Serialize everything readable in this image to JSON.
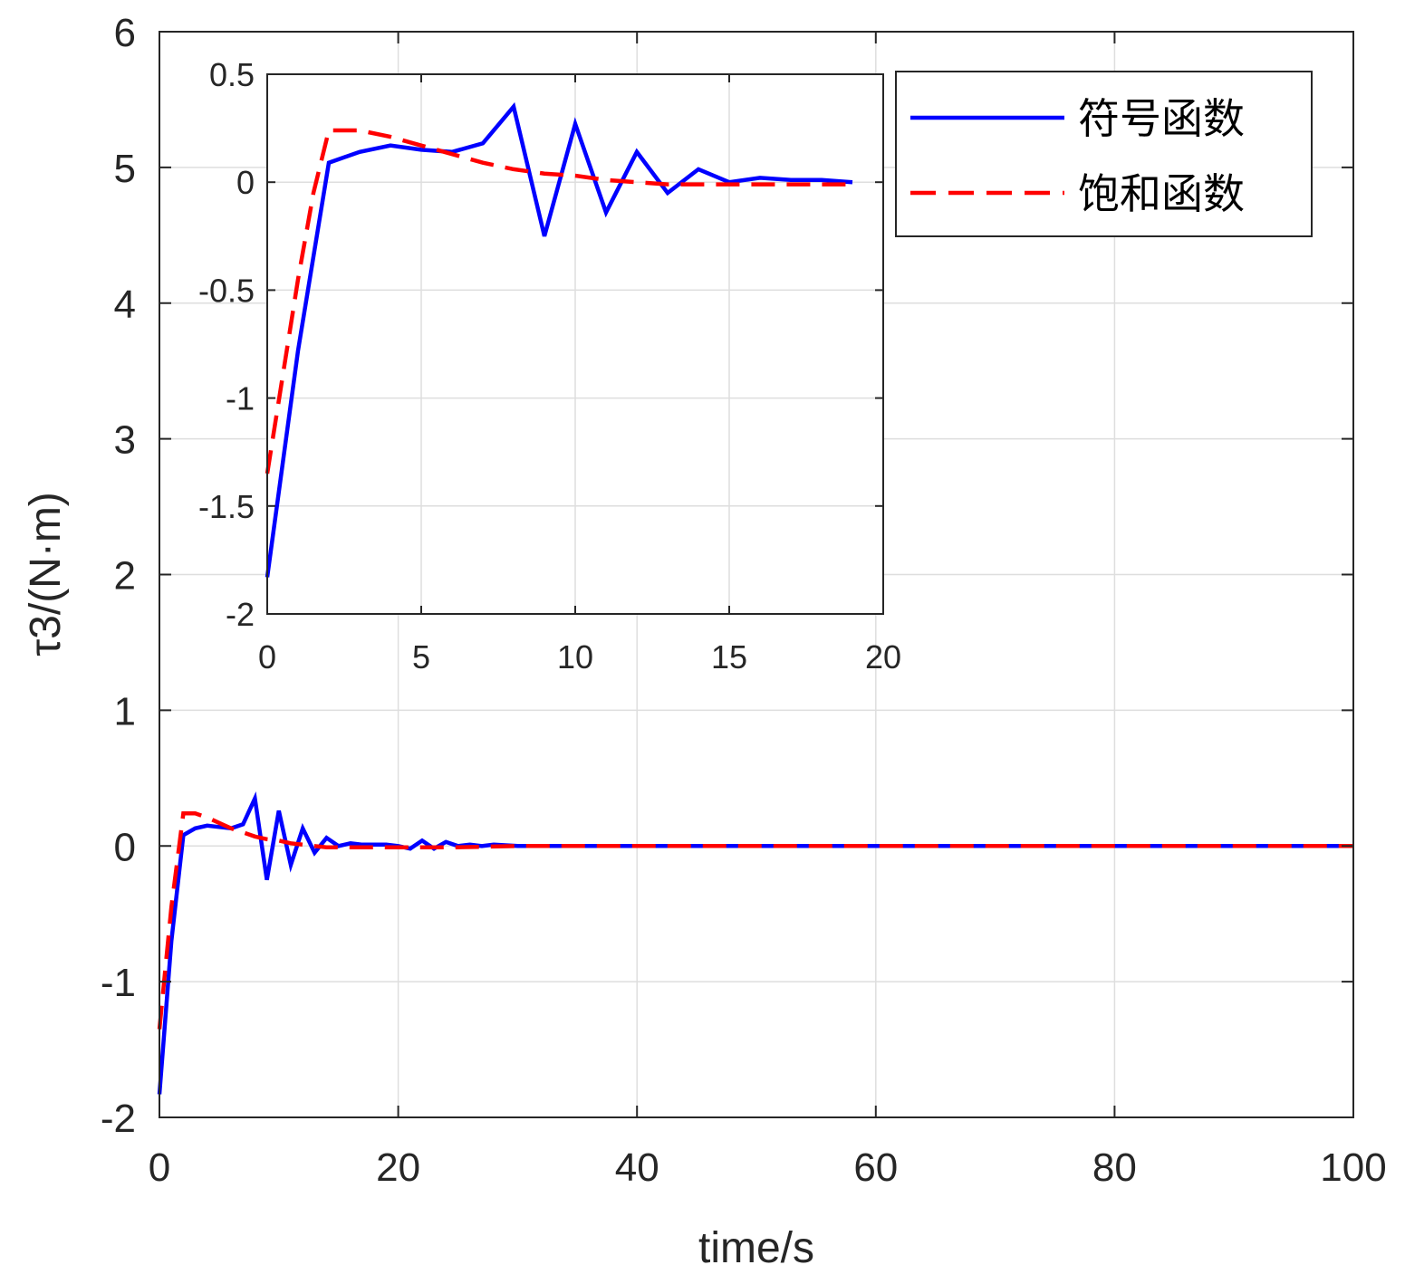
{
  "chart_data": [
    {
      "type": "line",
      "title": "",
      "xlabel": "time/s",
      "ylabel": "τ3/(N·m)",
      "xlim": [
        0,
        100
      ],
      "ylim": [
        -2,
        6
      ],
      "xticks": [
        0,
        20,
        40,
        60,
        80,
        100
      ],
      "yticks": [
        -2,
        -1,
        0,
        1,
        2,
        3,
        4,
        5,
        6
      ],
      "xtick_labels": [
        "0",
        "20",
        "40",
        "60",
        "80",
        "100"
      ],
      "ytick_labels": [
        "-2",
        "-1",
        "0",
        "1",
        "2",
        "3",
        "4",
        "5",
        "6"
      ],
      "grid": true,
      "legend_position": "top-right",
      "series": [
        {
          "name": "符号函数",
          "color": "#0000ff",
          "style": "solid",
          "x": [
            0,
            1,
            2,
            3,
            4,
            5,
            6,
            7,
            8,
            9,
            10,
            11,
            12,
            13,
            14,
            15,
            16,
            17,
            18,
            19,
            20,
            21,
            22,
            23,
            24,
            25,
            26,
            27,
            28,
            30,
            35,
            40,
            45,
            50,
            60,
            70,
            80,
            90,
            100
          ],
          "y": [
            -1.83,
            -0.7,
            0.08,
            0.13,
            0.15,
            0.14,
            0.13,
            0.16,
            0.35,
            -0.25,
            0.26,
            -0.14,
            0.13,
            -0.05,
            0.06,
            0.0,
            0.02,
            0.01,
            0.01,
            0.01,
            0.0,
            -0.02,
            0.04,
            -0.02,
            0.03,
            0.0,
            0.01,
            0.0,
            0.01,
            0.0,
            0.0,
            0.0,
            0.0,
            0.0,
            0.0,
            0.0,
            0.0,
            0.0,
            0.0
          ]
        },
        {
          "name": "饱和函数",
          "color": "#ff0000",
          "style": "dashed",
          "x": [
            0,
            1,
            2,
            3,
            4,
            5,
            6,
            7,
            8,
            9,
            10,
            11,
            12,
            13,
            14,
            15,
            16,
            17,
            18,
            19,
            20,
            22,
            25,
            30,
            40,
            50,
            60,
            70,
            80,
            90,
            100
          ],
          "y": [
            -1.35,
            -0.45,
            0.24,
            0.24,
            0.21,
            0.17,
            0.13,
            0.1,
            0.07,
            0.05,
            0.04,
            0.02,
            0.01,
            0.0,
            -0.01,
            -0.01,
            -0.01,
            -0.01,
            -0.01,
            -0.01,
            -0.01,
            -0.01,
            -0.01,
            0.0,
            0.0,
            0.0,
            0.0,
            0.0,
            0.0,
            0.0,
            0.0
          ]
        }
      ]
    },
    {
      "type": "line",
      "title": "",
      "xlabel": "",
      "ylabel": "",
      "xlim": [
        0,
        20
      ],
      "ylim": [
        -2,
        0.5
      ],
      "xticks": [
        0,
        5,
        10,
        15,
        20
      ],
      "yticks": [
        -2,
        -1.5,
        -1,
        -0.5,
        0,
        0.5
      ],
      "xtick_labels": [
        "0",
        "5",
        "10",
        "15",
        "20"
      ],
      "ytick_labels": [
        "-2",
        "-1.5",
        "-1",
        "-0.5",
        "0",
        "0.5"
      ],
      "grid": true,
      "series": [
        {
          "name": "符号函数",
          "color": "#0000ff",
          "style": "solid",
          "x": [
            0,
            1,
            2,
            3,
            4,
            5,
            6,
            7,
            8,
            9,
            10,
            11,
            12,
            13,
            14,
            15,
            16,
            17,
            18,
            19
          ],
          "y": [
            -1.83,
            -0.78,
            0.09,
            0.14,
            0.17,
            0.15,
            0.14,
            0.18,
            0.35,
            -0.25,
            0.27,
            -0.14,
            0.14,
            -0.05,
            0.06,
            0.0,
            0.02,
            0.01,
            0.01,
            0.0
          ]
        },
        {
          "name": "饱和函数",
          "color": "#ff0000",
          "style": "dashed",
          "x": [
            0,
            0.5,
            1,
            1.5,
            2,
            3,
            4,
            5,
            6,
            7,
            8,
            9,
            10,
            11,
            12,
            13,
            14,
            15,
            16,
            17,
            18,
            19
          ],
          "y": [
            -1.35,
            -0.9,
            -0.45,
            -0.05,
            0.24,
            0.24,
            0.21,
            0.17,
            0.13,
            0.09,
            0.06,
            0.04,
            0.03,
            0.01,
            0.0,
            -0.01,
            -0.01,
            -0.01,
            -0.01,
            -0.01,
            -0.01,
            -0.01
          ]
        }
      ]
    }
  ],
  "legend": {
    "items": [
      {
        "label": "符号函数",
        "color": "#0000ff",
        "style": "solid"
      },
      {
        "label": "饱和函数",
        "color": "#ff0000",
        "style": "dashed"
      }
    ]
  }
}
